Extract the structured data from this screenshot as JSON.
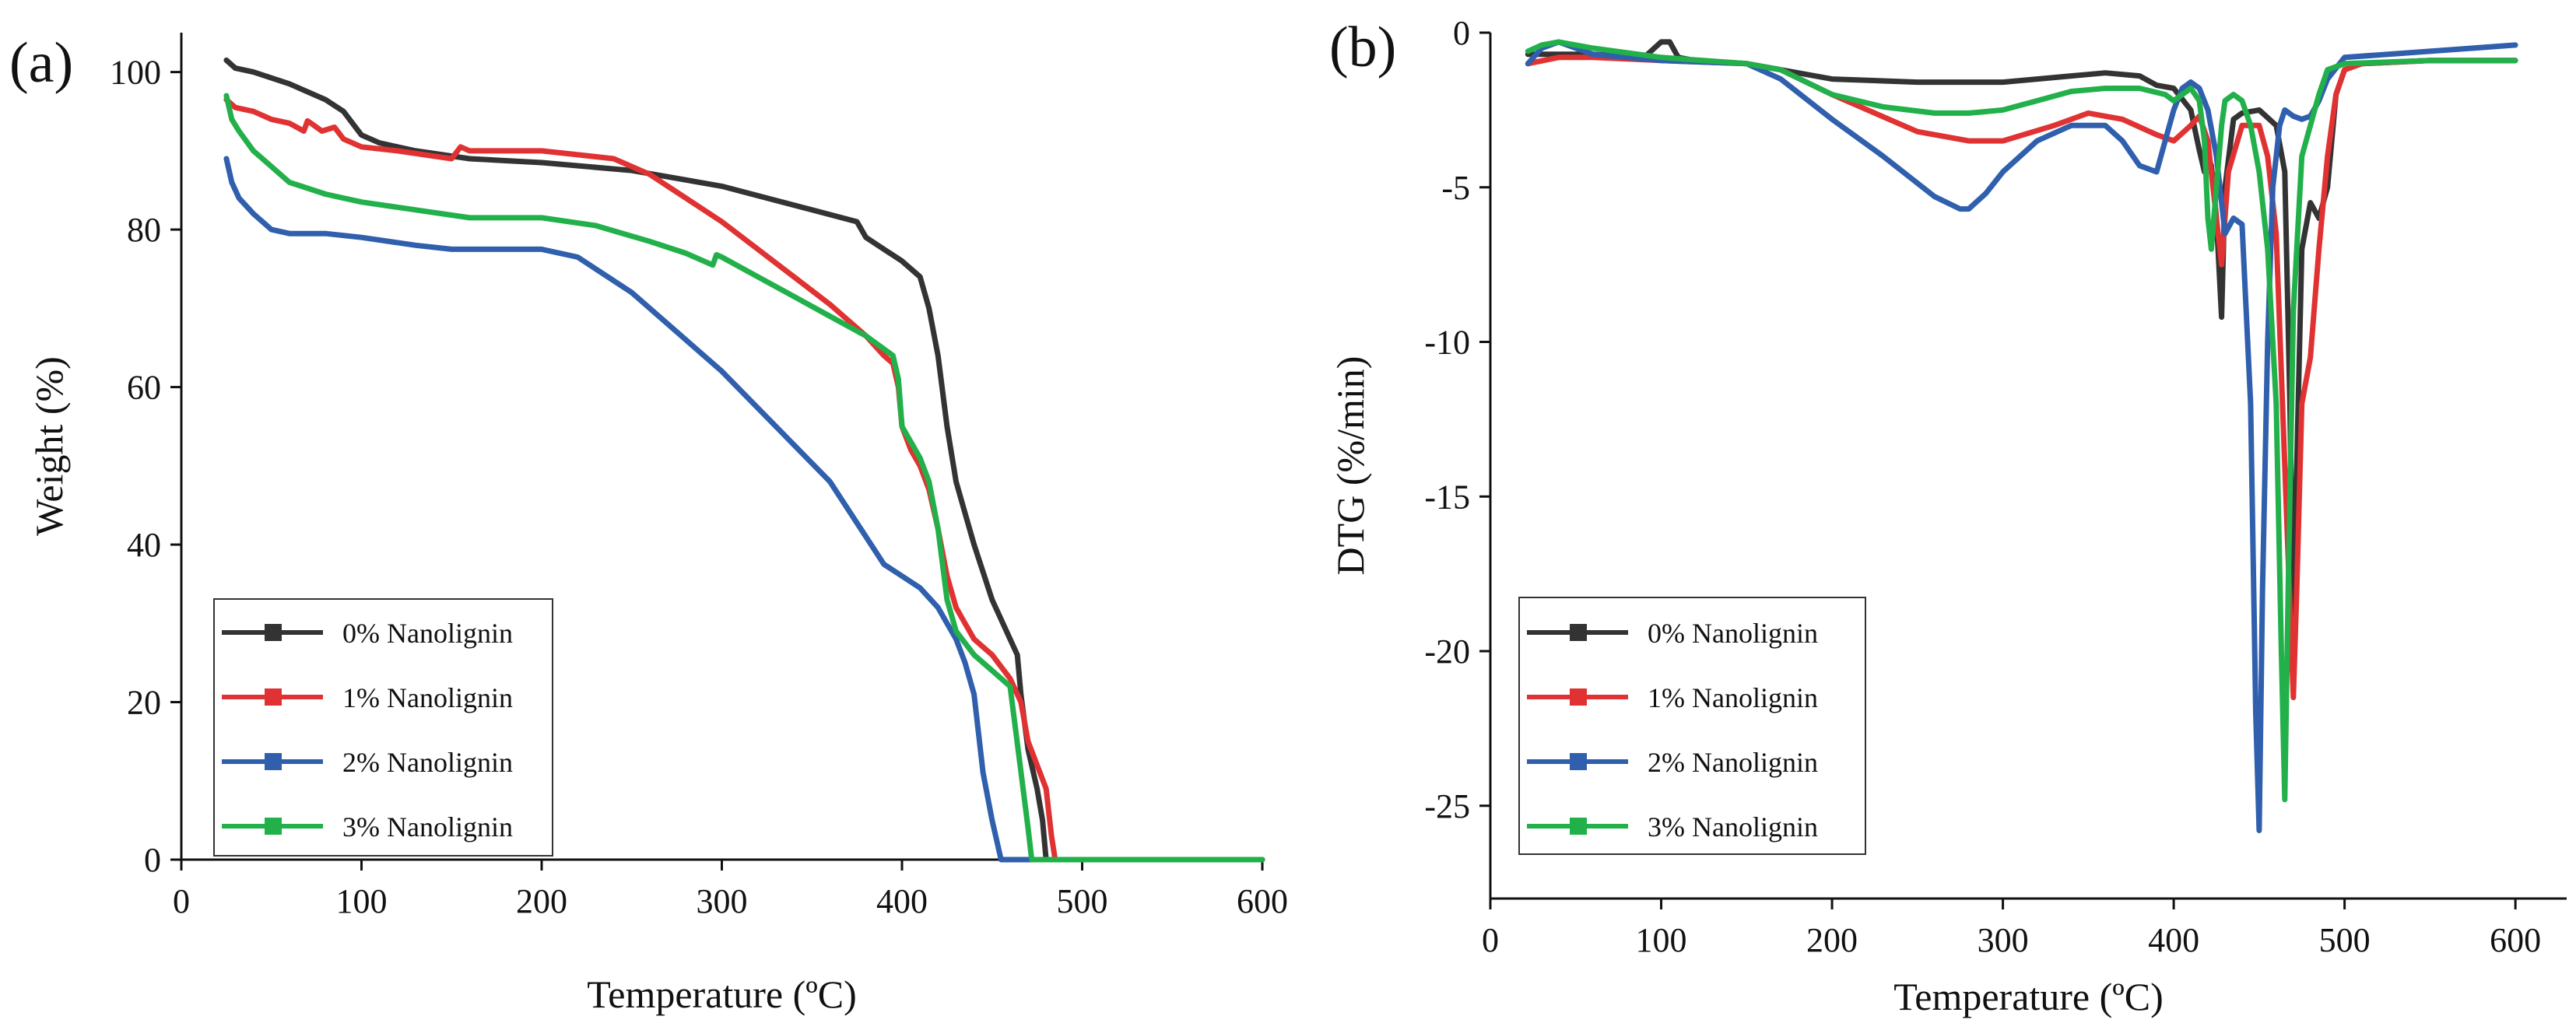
{
  "chart_data": [
    {
      "panel_label": "(a)",
      "type": "line",
      "title": "",
      "xlabel": "Temperature (ºC)",
      "ylabel": "Weight (%)",
      "xlim": [
        0,
        600
      ],
      "ylim": [
        0,
        105
      ],
      "xticks": [
        "0",
        "100",
        "200",
        "300",
        "400",
        "500",
        "600"
      ],
      "yticks": [
        "0",
        "20",
        "40",
        "60",
        "80",
        "100"
      ],
      "grid": false,
      "legend_position": "bottom-left",
      "series": [
        {
          "name": "0% Nanolignin",
          "color": "#333333",
          "x": [
            25,
            30,
            40,
            60,
            80,
            90,
            95,
            100,
            110,
            130,
            160,
            200,
            250,
            300,
            350,
            375,
            380,
            400,
            410,
            415,
            420,
            425,
            430,
            435,
            440,
            450,
            460,
            464,
            466,
            470,
            475,
            478,
            480,
            490,
            500,
            550,
            600
          ],
          "y": [
            101.5,
            100.5,
            100,
            98.5,
            96.5,
            95,
            93.5,
            92,
            91,
            90,
            89,
            88.5,
            87.5,
            85.5,
            82.5,
            81,
            79,
            76,
            74,
            70,
            64,
            55,
            48,
            44,
            40,
            33,
            28,
            26,
            21,
            14,
            9,
            5,
            0,
            0,
            0,
            0,
            0
          ]
        },
        {
          "name": "1% Nanolignin",
          "color": "#e03232",
          "x": [
            25,
            30,
            40,
            50,
            60,
            68,
            70,
            72,
            78,
            85,
            90,
            100,
            120,
            150,
            155,
            160,
            180,
            200,
            220,
            240,
            260,
            280,
            300,
            320,
            340,
            360,
            380,
            390,
            395,
            398,
            400,
            405,
            410,
            415,
            420,
            425,
            430,
            435,
            440,
            450,
            460,
            466,
            470,
            475,
            480,
            483,
            485,
            500,
            600
          ],
          "y": [
            96.5,
            95.5,
            95,
            94,
            93.5,
            92.5,
            93.8,
            93.5,
            92.5,
            93,
            91.5,
            90.5,
            90,
            89,
            90.5,
            90,
            90,
            90,
            89.5,
            89,
            87,
            84,
            81,
            77.5,
            74,
            70.5,
            66.5,
            64,
            63,
            60,
            55,
            52,
            50,
            47,
            42,
            36,
            32,
            30,
            28,
            26,
            23,
            20,
            15,
            12,
            9,
            3,
            0,
            0,
            0
          ]
        },
        {
          "name": "2% Nanolignin",
          "color": "#2f5fad",
          "x": [
            25,
            28,
            32,
            40,
            50,
            60,
            80,
            100,
            130,
            150,
            170,
            200,
            220,
            250,
            280,
            300,
            330,
            360,
            380,
            390,
            400,
            410,
            420,
            425,
            430,
            435,
            440,
            445,
            450,
            455,
            458,
            460,
            470,
            480,
            490,
            500,
            550,
            600
          ],
          "y": [
            89,
            86,
            84,
            82,
            80,
            79.5,
            79.5,
            79,
            78,
            77.5,
            77.5,
            77.5,
            76.5,
            72,
            66,
            62,
            55,
            48,
            41,
            37.5,
            36,
            34.5,
            32,
            30,
            28,
            25,
            21,
            11,
            5,
            0,
            0,
            0,
            0,
            0,
            0,
            0,
            0,
            0
          ]
        },
        {
          "name": "3% Nanolignin",
          "color": "#22b04b",
          "x": [
            25,
            28,
            32,
            40,
            50,
            60,
            80,
            100,
            130,
            160,
            200,
            230,
            260,
            280,
            295,
            297,
            300,
            320,
            340,
            360,
            380,
            395,
            398,
            400,
            405,
            410,
            415,
            420,
            425,
            430,
            440,
            450,
            460,
            465,
            470,
            472,
            480,
            500,
            550,
            600
          ],
          "y": [
            97,
            94,
            92.5,
            90,
            88,
            86,
            84.5,
            83.5,
            82.5,
            81.5,
            81.5,
            80.5,
            78.5,
            77,
            75.5,
            76.8,
            76.5,
            74,
            71.5,
            69,
            66.5,
            64,
            61,
            55,
            53,
            51,
            48,
            42,
            33,
            29,
            26,
            24,
            22,
            13,
            4,
            0,
            0,
            0,
            0,
            0
          ]
        }
      ]
    },
    {
      "panel_label": "(b)",
      "type": "line",
      "title": "",
      "xlabel": "Temperature (ºC)",
      "ylabel": "DTG (%/min)",
      "xlim": [
        0,
        630
      ],
      "ylim": [
        -28,
        0
      ],
      "xticks": [
        "0",
        "100",
        "200",
        "300",
        "400",
        "500",
        "600"
      ],
      "yticks": [
        "0",
        "-5",
        "-10",
        "-15",
        "-20",
        "-25"
      ],
      "grid": false,
      "legend_position": "bottom-left",
      "series": [
        {
          "name": "0% Nanolignin",
          "color": "#333333",
          "x": [
            22,
            40,
            60,
            90,
            100,
            105,
            110,
            120,
            150,
            170,
            200,
            250,
            300,
            320,
            340,
            360,
            380,
            390,
            400,
            410,
            415,
            418,
            420,
            422,
            425,
            428,
            430,
            435,
            440,
            450,
            460,
            465,
            468,
            470,
            472,
            475,
            480,
            485,
            490,
            495,
            500,
            510,
            550,
            600
          ],
          "y": [
            -0.7,
            -0.7,
            -0.7,
            -0.8,
            -0.3,
            -0.3,
            -0.8,
            -0.9,
            -1.0,
            -1.2,
            -1.5,
            -1.6,
            -1.6,
            -1.5,
            -1.4,
            -1.3,
            -1.4,
            -1.7,
            -1.8,
            -2.5,
            -3.8,
            -4.5,
            -4.0,
            -4.3,
            -6.0,
            -9.2,
            -5.0,
            -2.8,
            -2.6,
            -2.5,
            -3.0,
            -4.5,
            -12.0,
            -19.5,
            -14.0,
            -7.0,
            -5.5,
            -6.0,
            -5.0,
            -2.0,
            -1.2,
            -1.0,
            -0.9,
            -0.9
          ]
        },
        {
          "name": "1% Nanolignin",
          "color": "#e03232",
          "x": [
            22,
            40,
            60,
            100,
            150,
            170,
            200,
            250,
            280,
            300,
            330,
            350,
            370,
            390,
            400,
            410,
            415,
            420,
            425,
            428,
            432,
            440,
            450,
            455,
            460,
            465,
            470,
            472,
            475,
            480,
            485,
            490,
            495,
            500,
            510,
            550,
            600
          ],
          "y": [
            -1.0,
            -0.8,
            -0.8,
            -0.9,
            -1.0,
            -1.2,
            -2.0,
            -3.2,
            -3.5,
            -3.5,
            -3.0,
            -2.6,
            -2.8,
            -3.3,
            -3.5,
            -3.0,
            -2.7,
            -3.5,
            -6.0,
            -7.5,
            -4.5,
            -3.0,
            -3.0,
            -4.0,
            -6.5,
            -14.0,
            -21.5,
            -18.0,
            -12.0,
            -10.5,
            -7.0,
            -4.0,
            -2.0,
            -1.2,
            -1.0,
            -0.9,
            -0.9
          ]
        },
        {
          "name": "2% Nanolignin",
          "color": "#2f5fad",
          "x": [
            22,
            30,
            40,
            60,
            100,
            150,
            170,
            200,
            230,
            260,
            275,
            280,
            290,
            300,
            320,
            340,
            360,
            370,
            380,
            390,
            395,
            400,
            405,
            410,
            415,
            420,
            425,
            430,
            435,
            440,
            445,
            448,
            450,
            452,
            455,
            458,
            462,
            465,
            470,
            475,
            480,
            485,
            490,
            500,
            550,
            600
          ],
          "y": [
            -1.0,
            -0.5,
            -0.3,
            -0.7,
            -0.9,
            -1.0,
            -1.5,
            -2.8,
            -4.0,
            -5.3,
            -5.7,
            -5.7,
            -5.2,
            -4.5,
            -3.5,
            -3.0,
            -3.0,
            -3.5,
            -4.3,
            -4.5,
            -3.5,
            -2.5,
            -1.8,
            -1.6,
            -1.8,
            -2.5,
            -4.0,
            -6.5,
            -6.0,
            -6.2,
            -12.0,
            -22.0,
            -25.8,
            -18.0,
            -10.0,
            -5.0,
            -3.0,
            -2.5,
            -2.7,
            -2.8,
            -2.7,
            -2.2,
            -1.5,
            -0.8,
            -0.6,
            -0.4
          ]
        },
        {
          "name": "3% Nanolignin",
          "color": "#22b04b",
          "x": [
            22,
            30,
            40,
            60,
            100,
            150,
            170,
            200,
            230,
            260,
            280,
            300,
            320,
            340,
            360,
            380,
            395,
            400,
            405,
            410,
            415,
            418,
            420,
            422,
            425,
            428,
            430,
            435,
            440,
            445,
            450,
            455,
            460,
            463,
            465,
            467,
            470,
            475,
            480,
            485,
            490,
            500,
            550,
            600
          ],
          "y": [
            -0.6,
            -0.4,
            -0.3,
            -0.5,
            -0.8,
            -1.0,
            -1.2,
            -2.0,
            -2.4,
            -2.6,
            -2.6,
            -2.5,
            -2.2,
            -1.9,
            -1.8,
            -1.8,
            -2.0,
            -2.2,
            -2.0,
            -1.8,
            -2.2,
            -3.5,
            -6.0,
            -7.0,
            -5.0,
            -3.0,
            -2.2,
            -2.0,
            -2.2,
            -3.0,
            -4.5,
            -7.0,
            -12.0,
            -20.0,
            -24.8,
            -18.0,
            -9.0,
            -4.0,
            -3.0,
            -2.0,
            -1.2,
            -1.0,
            -0.9,
            -0.9
          ]
        }
      ]
    }
  ]
}
